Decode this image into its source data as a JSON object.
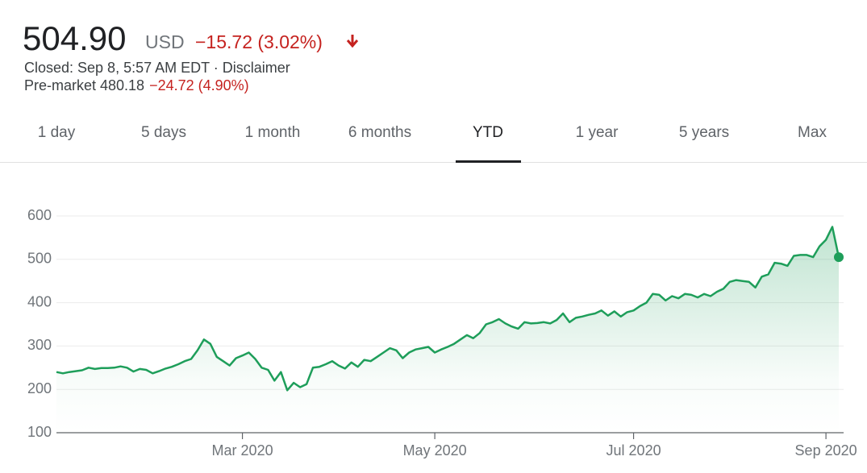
{
  "header": {
    "price": "504.90",
    "currency": "USD",
    "change": "−15.72 (3.02%)",
    "status": "Closed: Sep 8, 5:57 AM EDT · ",
    "disclaimer": "Disclaimer",
    "premarket": "Pre-market 480.18",
    "premarket_change": "−24.72 (4.90%)"
  },
  "tabs": [
    "1 day",
    "5 days",
    "1 month",
    "6 months",
    "YTD",
    "1 year",
    "5 years",
    "Max"
  ],
  "selected_tab": "YTD",
  "chart_data": {
    "type": "line",
    "color": "#1e9e5a",
    "grid": true,
    "ylim": [
      100,
      600
    ],
    "yticks": [
      100,
      200,
      300,
      400,
      500,
      600
    ],
    "categories": [
      null,
      null,
      null,
      null,
      null,
      null,
      null,
      null,
      null,
      null,
      null,
      null,
      null,
      null,
      null,
      null,
      null,
      null,
      null,
      null,
      null,
      null,
      null,
      null,
      null,
      null,
      null,
      null,
      null,
      "Mar 2020",
      null,
      null,
      null,
      null,
      null,
      null,
      null,
      null,
      null,
      null,
      null,
      null,
      null,
      null,
      null,
      null,
      null,
      null,
      null,
      null,
      null,
      null,
      null,
      null,
      null,
      null,
      null,
      null,
      null,
      "May 2020",
      null,
      null,
      null,
      null,
      null,
      null,
      null,
      null,
      null,
      null,
      null,
      null,
      null,
      null,
      null,
      null,
      null,
      null,
      null,
      null,
      null,
      null,
      null,
      null,
      null,
      null,
      null,
      null,
      null,
      null,
      "Jul 2020",
      null,
      null,
      null,
      null,
      null,
      null,
      null,
      null,
      null,
      null,
      null,
      null,
      null,
      null,
      null,
      null,
      null,
      null,
      null,
      null,
      null,
      null,
      null,
      null,
      null,
      null,
      null,
      null,
      null,
      "Sep 2020",
      null,
      null
    ],
    "values": [
      240,
      237,
      240,
      242,
      244,
      250,
      247,
      249,
      249,
      250,
      253,
      250,
      241,
      247,
      245,
      237,
      242,
      248,
      252,
      258,
      265,
      270,
      290,
      315,
      305,
      275,
      265,
      255,
      272,
      278,
      285,
      270,
      250,
      245,
      220,
      240,
      198,
      215,
      205,
      212,
      250,
      252,
      258,
      265,
      255,
      248,
      262,
      252,
      268,
      265,
      275,
      285,
      295,
      290,
      272,
      285,
      292,
      295,
      298,
      285,
      292,
      298,
      305,
      315,
      325,
      318,
      330,
      350,
      355,
      362,
      352,
      345,
      340,
      355,
      352,
      353,
      355,
      352,
      360,
      375,
      355,
      365,
      368,
      372,
      375,
      382,
      370,
      380,
      368,
      378,
      382,
      392,
      400,
      420,
      418,
      405,
      415,
      410,
      420,
      418,
      412,
      420,
      415,
      425,
      432,
      448,
      452,
      450,
      448,
      435,
      460,
      465,
      492,
      490,
      485,
      508,
      510,
      510,
      505,
      530,
      545,
      575,
      504.9
    ]
  }
}
